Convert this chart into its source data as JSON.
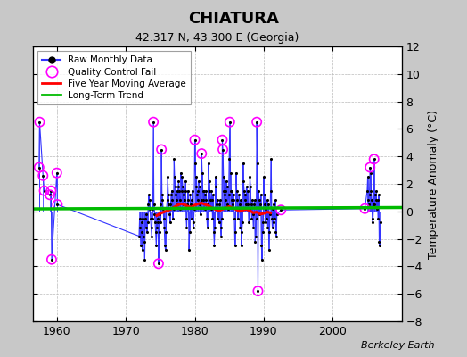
{
  "title": "CHIATURA",
  "subtitle": "42.317 N, 43.300 E (Georgia)",
  "ylabel": "Temperature Anomaly (°C)",
  "attribution": "Berkeley Earth",
  "ylim": [
    -8,
    12
  ],
  "xlim": [
    1956.5,
    2010
  ],
  "xticks": [
    1960,
    1970,
    1980,
    1990,
    2000
  ],
  "yticks": [
    -8,
    -6,
    -4,
    -2,
    0,
    2,
    4,
    6,
    8,
    10,
    12
  ],
  "fig_bg_color": "#c8c8c8",
  "plot_bg_color": "#ffffff",
  "raw_line_color": "#3333ff",
  "raw_dot_color": "#000000",
  "qc_fail_color": "#ff00ff",
  "moving_avg_color": "#ff0000",
  "trend_color": "#00bb00",
  "trend_x": [
    1956.5,
    2010
  ],
  "trend_y": [
    0.18,
    0.28
  ],
  "raw_data": [
    [
      1957.42,
      3.2
    ],
    [
      1957.5,
      6.5
    ],
    [
      1958.0,
      2.6
    ],
    [
      1958.17,
      1.5
    ],
    [
      1959.0,
      1.2
    ],
    [
      1959.17,
      1.5
    ],
    [
      1959.25,
      -3.5
    ],
    [
      1960.0,
      2.8
    ],
    [
      1960.08,
      0.5
    ],
    [
      1971.92,
      -1.8
    ],
    [
      1972.0,
      -0.5
    ],
    [
      1972.08,
      -1.2
    ],
    [
      1972.17,
      -2.5
    ],
    [
      1972.25,
      -0.8
    ],
    [
      1972.33,
      -1.5
    ],
    [
      1972.42,
      -2.8
    ],
    [
      1972.5,
      -0.5
    ],
    [
      1972.58,
      -1.8
    ],
    [
      1972.67,
      -2.2
    ],
    [
      1972.75,
      -3.5
    ],
    [
      1972.83,
      -0.5
    ],
    [
      1972.92,
      -1.2
    ],
    [
      1973.0,
      -0.2
    ],
    [
      1973.08,
      -1.5
    ],
    [
      1973.17,
      -0.8
    ],
    [
      1973.25,
      0.5
    ],
    [
      1973.33,
      1.2
    ],
    [
      1973.42,
      0.8
    ],
    [
      1973.5,
      0.2
    ],
    [
      1973.58,
      -0.5
    ],
    [
      1973.67,
      -1.2
    ],
    [
      1973.75,
      -1.8
    ],
    [
      1973.83,
      -0.5
    ],
    [
      1973.92,
      0.2
    ],
    [
      1974.0,
      6.5
    ],
    [
      1974.08,
      0.5
    ],
    [
      1974.17,
      -0.2
    ],
    [
      1974.25,
      -0.8
    ],
    [
      1974.33,
      -1.5
    ],
    [
      1974.42,
      -2.5
    ],
    [
      1974.5,
      -1.2
    ],
    [
      1974.58,
      -0.5
    ],
    [
      1974.67,
      -0.8
    ],
    [
      1974.75,
      -3.8
    ],
    [
      1974.83,
      -1.5
    ],
    [
      1974.92,
      -0.2
    ],
    [
      1975.0,
      0.5
    ],
    [
      1975.08,
      -0.8
    ],
    [
      1975.17,
      4.5
    ],
    [
      1975.25,
      1.2
    ],
    [
      1975.33,
      0.8
    ],
    [
      1975.42,
      0.2
    ],
    [
      1975.5,
      -0.5
    ],
    [
      1975.58,
      -1.2
    ],
    [
      1975.67,
      -2.5
    ],
    [
      1975.75,
      -2.8
    ],
    [
      1975.83,
      -1.5
    ],
    [
      1975.92,
      0.2
    ],
    [
      1976.0,
      0.8
    ],
    [
      1976.08,
      2.5
    ],
    [
      1976.17,
      1.2
    ],
    [
      1976.25,
      0.5
    ],
    [
      1976.33,
      -0.2
    ],
    [
      1976.42,
      -0.8
    ],
    [
      1976.5,
      0.5
    ],
    [
      1976.58,
      1.2
    ],
    [
      1976.67,
      1.5
    ],
    [
      1976.75,
      0.8
    ],
    [
      1976.83,
      -0.5
    ],
    [
      1976.92,
      0.2
    ],
    [
      1977.0,
      3.8
    ],
    [
      1977.08,
      2.5
    ],
    [
      1977.17,
      1.8
    ],
    [
      1977.25,
      1.2
    ],
    [
      1977.33,
      0.8
    ],
    [
      1977.42,
      1.5
    ],
    [
      1977.5,
      0.5
    ],
    [
      1977.58,
      1.8
    ],
    [
      1977.67,
      2.2
    ],
    [
      1977.75,
      1.5
    ],
    [
      1977.83,
      0.8
    ],
    [
      1977.92,
      0.2
    ],
    [
      1978.0,
      2.8
    ],
    [
      1978.08,
      1.5
    ],
    [
      1978.17,
      2.5
    ],
    [
      1978.25,
      1.8
    ],
    [
      1978.33,
      0.5
    ],
    [
      1978.42,
      1.2
    ],
    [
      1978.5,
      0.8
    ],
    [
      1978.58,
      1.5
    ],
    [
      1978.67,
      2.2
    ],
    [
      1978.75,
      -0.5
    ],
    [
      1978.83,
      -1.2
    ],
    [
      1978.92,
      0.5
    ],
    [
      1979.0,
      1.5
    ],
    [
      1979.08,
      0.8
    ],
    [
      1979.17,
      -2.8
    ],
    [
      1979.25,
      -1.5
    ],
    [
      1979.33,
      1.2
    ],
    [
      1979.42,
      0.5
    ],
    [
      1979.5,
      -0.5
    ],
    [
      1979.58,
      0.8
    ],
    [
      1979.67,
      1.5
    ],
    [
      1979.75,
      -1.2
    ],
    [
      1979.83,
      -0.8
    ],
    [
      1979.92,
      0.2
    ],
    [
      1980.0,
      5.2
    ],
    [
      1980.08,
      3.5
    ],
    [
      1980.17,
      1.8
    ],
    [
      1980.25,
      2.5
    ],
    [
      1980.33,
      1.2
    ],
    [
      1980.42,
      0.8
    ],
    [
      1980.5,
      1.5
    ],
    [
      1980.58,
      2.2
    ],
    [
      1980.67,
      1.8
    ],
    [
      1980.75,
      0.5
    ],
    [
      1980.83,
      -0.2
    ],
    [
      1980.92,
      0.8
    ],
    [
      1981.0,
      4.2
    ],
    [
      1981.08,
      2.8
    ],
    [
      1981.17,
      1.5
    ],
    [
      1981.25,
      0.8
    ],
    [
      1981.33,
      1.5
    ],
    [
      1981.42,
      0.2
    ],
    [
      1981.5,
      1.2
    ],
    [
      1981.58,
      0.8
    ],
    [
      1981.67,
      1.5
    ],
    [
      1981.75,
      -0.5
    ],
    [
      1981.83,
      -1.2
    ],
    [
      1981.92,
      0.5
    ],
    [
      1982.0,
      3.5
    ],
    [
      1982.08,
      2.2
    ],
    [
      1982.17,
      1.5
    ],
    [
      1982.25,
      0.8
    ],
    [
      1982.33,
      0.2
    ],
    [
      1982.42,
      1.5
    ],
    [
      1982.5,
      0.8
    ],
    [
      1982.58,
      -0.5
    ],
    [
      1982.67,
      1.2
    ],
    [
      1982.75,
      -1.5
    ],
    [
      1982.83,
      -2.5
    ],
    [
      1982.92,
      -1.2
    ],
    [
      1983.0,
      2.5
    ],
    [
      1983.08,
      1.8
    ],
    [
      1983.17,
      0.5
    ],
    [
      1983.25,
      -0.5
    ],
    [
      1983.33,
      0.8
    ],
    [
      1983.42,
      0.2
    ],
    [
      1983.5,
      -0.8
    ],
    [
      1983.58,
      0.5
    ],
    [
      1983.67,
      0.8
    ],
    [
      1983.75,
      -1.2
    ],
    [
      1983.83,
      -1.8
    ],
    [
      1983.92,
      -0.5
    ],
    [
      1984.0,
      5.2
    ],
    [
      1984.08,
      4.5
    ],
    [
      1984.17,
      2.5
    ],
    [
      1984.25,
      1.5
    ],
    [
      1984.33,
      1.2
    ],
    [
      1984.42,
      0.8
    ],
    [
      1984.5,
      1.5
    ],
    [
      1984.58,
      2.2
    ],
    [
      1984.67,
      1.8
    ],
    [
      1984.75,
      0.5
    ],
    [
      1984.83,
      0.2
    ],
    [
      1984.92,
      1.2
    ],
    [
      1985.0,
      3.8
    ],
    [
      1985.08,
      6.5
    ],
    [
      1985.17,
      2.8
    ],
    [
      1985.25,
      1.5
    ],
    [
      1985.33,
      0.8
    ],
    [
      1985.42,
      1.5
    ],
    [
      1985.5,
      0.5
    ],
    [
      1985.58,
      1.2
    ],
    [
      1985.67,
      0.8
    ],
    [
      1985.75,
      -0.5
    ],
    [
      1985.83,
      -2.5
    ],
    [
      1985.92,
      -1.5
    ],
    [
      1986.0,
      2.8
    ],
    [
      1986.08,
      1.5
    ],
    [
      1986.17,
      0.8
    ],
    [
      1986.25,
      -0.5
    ],
    [
      1986.33,
      0.2
    ],
    [
      1986.42,
      1.2
    ],
    [
      1986.5,
      0.5
    ],
    [
      1986.58,
      -1.2
    ],
    [
      1986.67,
      0.8
    ],
    [
      1986.75,
      -2.5
    ],
    [
      1986.83,
      -1.5
    ],
    [
      1986.92,
      -0.8
    ],
    [
      1987.0,
      3.5
    ],
    [
      1987.08,
      2.2
    ],
    [
      1987.17,
      1.5
    ],
    [
      1987.25,
      0.8
    ],
    [
      1987.33,
      1.2
    ],
    [
      1987.42,
      0.5
    ],
    [
      1987.5,
      1.8
    ],
    [
      1987.58,
      0.2
    ],
    [
      1987.67,
      1.5
    ],
    [
      1987.75,
      0.5
    ],
    [
      1987.83,
      -0.8
    ],
    [
      1987.92,
      0.2
    ],
    [
      1988.0,
      2.5
    ],
    [
      1988.08,
      1.8
    ],
    [
      1988.17,
      0.5
    ],
    [
      1988.25,
      -0.5
    ],
    [
      1988.33,
      0.8
    ],
    [
      1988.42,
      -0.2
    ],
    [
      1988.5,
      -1.2
    ],
    [
      1988.58,
      0.5
    ],
    [
      1988.67,
      0.8
    ],
    [
      1988.75,
      -2.2
    ],
    [
      1988.83,
      -1.8
    ],
    [
      1988.92,
      -0.5
    ],
    [
      1989.0,
      6.5
    ],
    [
      1989.08,
      3.5
    ],
    [
      1989.17,
      -5.8
    ],
    [
      1989.25,
      1.5
    ],
    [
      1989.33,
      0.8
    ],
    [
      1989.42,
      -0.2
    ],
    [
      1989.5,
      0.5
    ],
    [
      1989.58,
      1.2
    ],
    [
      1989.67,
      -2.5
    ],
    [
      1989.75,
      -3.5
    ],
    [
      1989.83,
      -1.5
    ],
    [
      1989.92,
      -0.8
    ],
    [
      1990.0,
      2.5
    ],
    [
      1990.08,
      1.2
    ],
    [
      1990.17,
      0.5
    ],
    [
      1990.25,
      -0.8
    ],
    [
      1990.33,
      0.2
    ],
    [
      1990.42,
      -0.5
    ],
    [
      1990.5,
      0.8
    ],
    [
      1990.58,
      -1.2
    ],
    [
      1990.67,
      0.5
    ],
    [
      1990.75,
      -2.8
    ],
    [
      1990.83,
      -1.5
    ],
    [
      1990.92,
      -0.2
    ],
    [
      1991.0,
      1.5
    ],
    [
      1991.08,
      3.8
    ],
    [
      1991.17,
      -0.5
    ],
    [
      1991.25,
      -1.2
    ],
    [
      1991.33,
      0.2
    ],
    [
      1991.42,
      -0.8
    ],
    [
      1991.5,
      0.5
    ],
    [
      1991.58,
      -0.5
    ],
    [
      1991.67,
      0.8
    ],
    [
      1991.75,
      -1.5
    ],
    [
      1991.83,
      -1.8
    ],
    [
      1991.92,
      -0.2
    ],
    [
      1992.5,
      0.1
    ],
    [
      2004.67,
      0.2
    ],
    [
      2005.0,
      1.5
    ],
    [
      2005.08,
      2.5
    ],
    [
      2005.17,
      0.8
    ],
    [
      2005.25,
      0.5
    ],
    [
      2005.33,
      1.2
    ],
    [
      2005.42,
      3.2
    ],
    [
      2005.5,
      2.8
    ],
    [
      2005.58,
      1.5
    ],
    [
      2005.67,
      0.8
    ],
    [
      2005.75,
      -0.5
    ],
    [
      2005.83,
      -0.8
    ],
    [
      2005.92,
      0.5
    ],
    [
      2006.0,
      3.8
    ],
    [
      2006.08,
      0.5
    ],
    [
      2006.17,
      1.2
    ],
    [
      2006.25,
      0.8
    ],
    [
      2006.33,
      1.5
    ],
    [
      2006.42,
      0.2
    ],
    [
      2006.5,
      0.8
    ],
    [
      2006.58,
      -0.5
    ],
    [
      2006.67,
      1.2
    ],
    [
      2006.75,
      -2.2
    ],
    [
      2006.83,
      -2.5
    ],
    [
      2006.92,
      -0.8
    ]
  ],
  "qc_x": [
    1957.42,
    1957.5,
    1958.0,
    1958.17,
    1959.0,
    1959.17,
    1959.25,
    1960.0,
    1960.08,
    1974.0,
    1974.75,
    1975.17,
    1980.0,
    1981.0,
    1984.0,
    1984.08,
    1985.08,
    1989.0,
    1989.17,
    1992.5,
    2004.67,
    2005.42,
    2006.0
  ],
  "qc_y": [
    3.2,
    6.5,
    2.6,
    1.5,
    1.2,
    1.5,
    -3.5,
    2.8,
    0.5,
    6.5,
    -3.8,
    4.5,
    5.2,
    4.2,
    5.2,
    4.5,
    6.5,
    6.5,
    -5.8,
    0.1,
    0.2,
    3.2,
    3.8
  ],
  "moving_avg_x": [
    1974.5,
    1975.0,
    1975.5,
    1976.0,
    1976.5,
    1977.0,
    1977.5,
    1978.0,
    1978.5,
    1979.0,
    1979.5,
    1980.0,
    1980.5,
    1981.0,
    1981.5,
    1982.0,
    1982.5,
    1983.0,
    1983.5,
    1984.0,
    1984.5,
    1985.0,
    1985.5,
    1986.0,
    1986.5,
    1987.0,
    1987.5,
    1988.0,
    1988.5,
    1989.0,
    1989.5,
    1990.0,
    1990.5,
    1991.0
  ],
  "moving_avg_y": [
    -0.3,
    -0.15,
    -0.05,
    0.05,
    0.15,
    0.3,
    0.45,
    0.55,
    0.5,
    0.35,
    0.3,
    0.45,
    0.55,
    0.6,
    0.5,
    0.4,
    0.25,
    0.15,
    0.05,
    0.15,
    0.25,
    0.35,
    0.25,
    0.15,
    0.0,
    0.1,
    0.15,
    0.05,
    -0.1,
    -0.05,
    -0.2,
    -0.15,
    -0.05,
    -0.1
  ]
}
